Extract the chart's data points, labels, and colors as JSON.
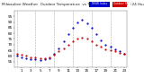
{
  "title": "Milwaukee Weather  Outdoor Temperature  vs THSW Index  per Hour  (24 Hours)",
  "hours": [
    0,
    1,
    2,
    3,
    4,
    5,
    6,
    7,
    8,
    9,
    10,
    11,
    12,
    13,
    14,
    15,
    16,
    17,
    18,
    19,
    20,
    21,
    22,
    23
  ],
  "temp": [
    62,
    61,
    60,
    59,
    59,
    58,
    58,
    59,
    61,
    64,
    67,
    70,
    73,
    75,
    76,
    75,
    73,
    70,
    68,
    66,
    65,
    64,
    63,
    62
  ],
  "thsw": [
    60,
    59,
    58,
    57,
    57,
    56,
    57,
    58,
    62,
    67,
    73,
    79,
    85,
    90,
    92,
    89,
    85,
    79,
    74,
    70,
    68,
    66,
    64,
    62
  ],
  "temp_color": "#cc0000",
  "thsw_color": "#0000cc",
  "bg_color": "#ffffff",
  "grid_color": "#aaaaaa",
  "ylim_min": 50,
  "ylim_max": 100,
  "ytick_positions": [
    55,
    60,
    65,
    70,
    75,
    80,
    85,
    90,
    95
  ],
  "ytick_labels": [
    "55",
    "60",
    "65",
    "70",
    "75",
    "80",
    "85",
    "90",
    "95"
  ],
  "xtick_positions": [
    1,
    3,
    5,
    7,
    9,
    11,
    13,
    15,
    17,
    19,
    21,
    23
  ],
  "xtick_labels": [
    "1",
    "3",
    "5",
    "7",
    "9",
    "11",
    "13",
    "15",
    "17",
    "19",
    "21",
    "23"
  ],
  "vgrid_positions": [
    0,
    4,
    8,
    12,
    16,
    20,
    24
  ],
  "legend_temp": "Outdoor Temp",
  "legend_thsw": "THSW Index",
  "tick_fontsize": 3.0,
  "title_fontsize": 3.0,
  "marker_size": 1.2
}
